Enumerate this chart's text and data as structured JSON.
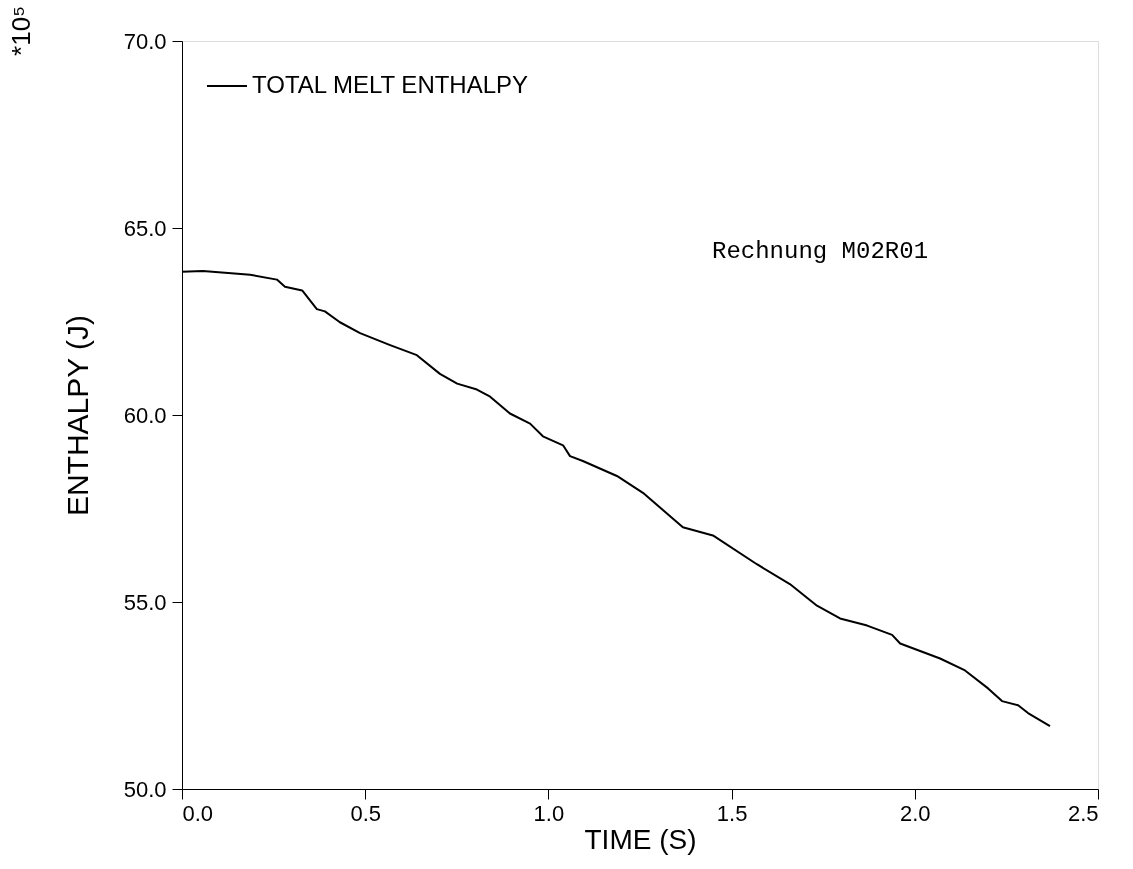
{
  "chart_data": {
    "type": "line",
    "xlabel": "TIME (S)",
    "ylabel": "ENTHALPY (J)",
    "x": [
      0,
      0.057,
      0.186,
      0.259,
      0.281,
      0.328,
      0.368,
      0.39,
      0.431,
      0.486,
      0.568,
      0.641,
      0.704,
      0.751,
      0.805,
      0.841,
      0.895,
      0.95,
      0.985,
      1.04,
      1.059,
      1.094,
      1.187,
      1.258,
      1.367,
      1.449,
      1.569,
      1.659,
      1.733,
      1.796,
      1.87,
      1.938,
      1.96,
      2.069,
      2.137,
      2.2,
      2.238,
      2.282,
      2.309,
      2.369
    ],
    "series": [
      {
        "name": "TOTAL MELT ENTHALPY",
        "color": "#000000",
        "values": [
          63.83,
          63.85,
          63.75,
          63.62,
          63.43,
          63.33,
          62.83,
          62.77,
          62.48,
          62.19,
          61.87,
          61.6,
          61.1,
          60.84,
          60.68,
          60.49,
          60.04,
          59.77,
          59.43,
          59.19,
          58.9,
          58.77,
          58.37,
          57.92,
          57.0,
          56.78,
          56.01,
          55.48,
          54.9,
          54.56,
          54.37,
          54.12,
          53.89,
          53.49,
          53.17,
          52.69,
          52.35,
          52.24,
          52.03,
          51.68
        ]
      }
    ],
    "xlim": [
      0,
      2.5
    ],
    "xticks": [
      {
        "value": 0,
        "label": "0.0"
      },
      0.5,
      {
        "value": 1,
        "label": "1.0"
      },
      1.5,
      {
        "value": 2,
        "label": "2.0"
      },
      2.5
    ],
    "ylim": [
      50,
      70
    ],
    "yticks": [
      {
        "value": 50,
        "label": "50.0"
      },
      {
        "value": 55,
        "label": "55.0"
      },
      {
        "value": 60,
        "label": "60.0"
      },
      {
        "value": 65,
        "label": "65.0"
      },
      {
        "value": 70,
        "label": "70.0"
      }
    ],
    "annotations": [
      "*10⁵",
      "Rechnung M02R01"
    ],
    "legend": "top left",
    "grid": false,
    "line_style": "solid",
    "marker": "none"
  }
}
